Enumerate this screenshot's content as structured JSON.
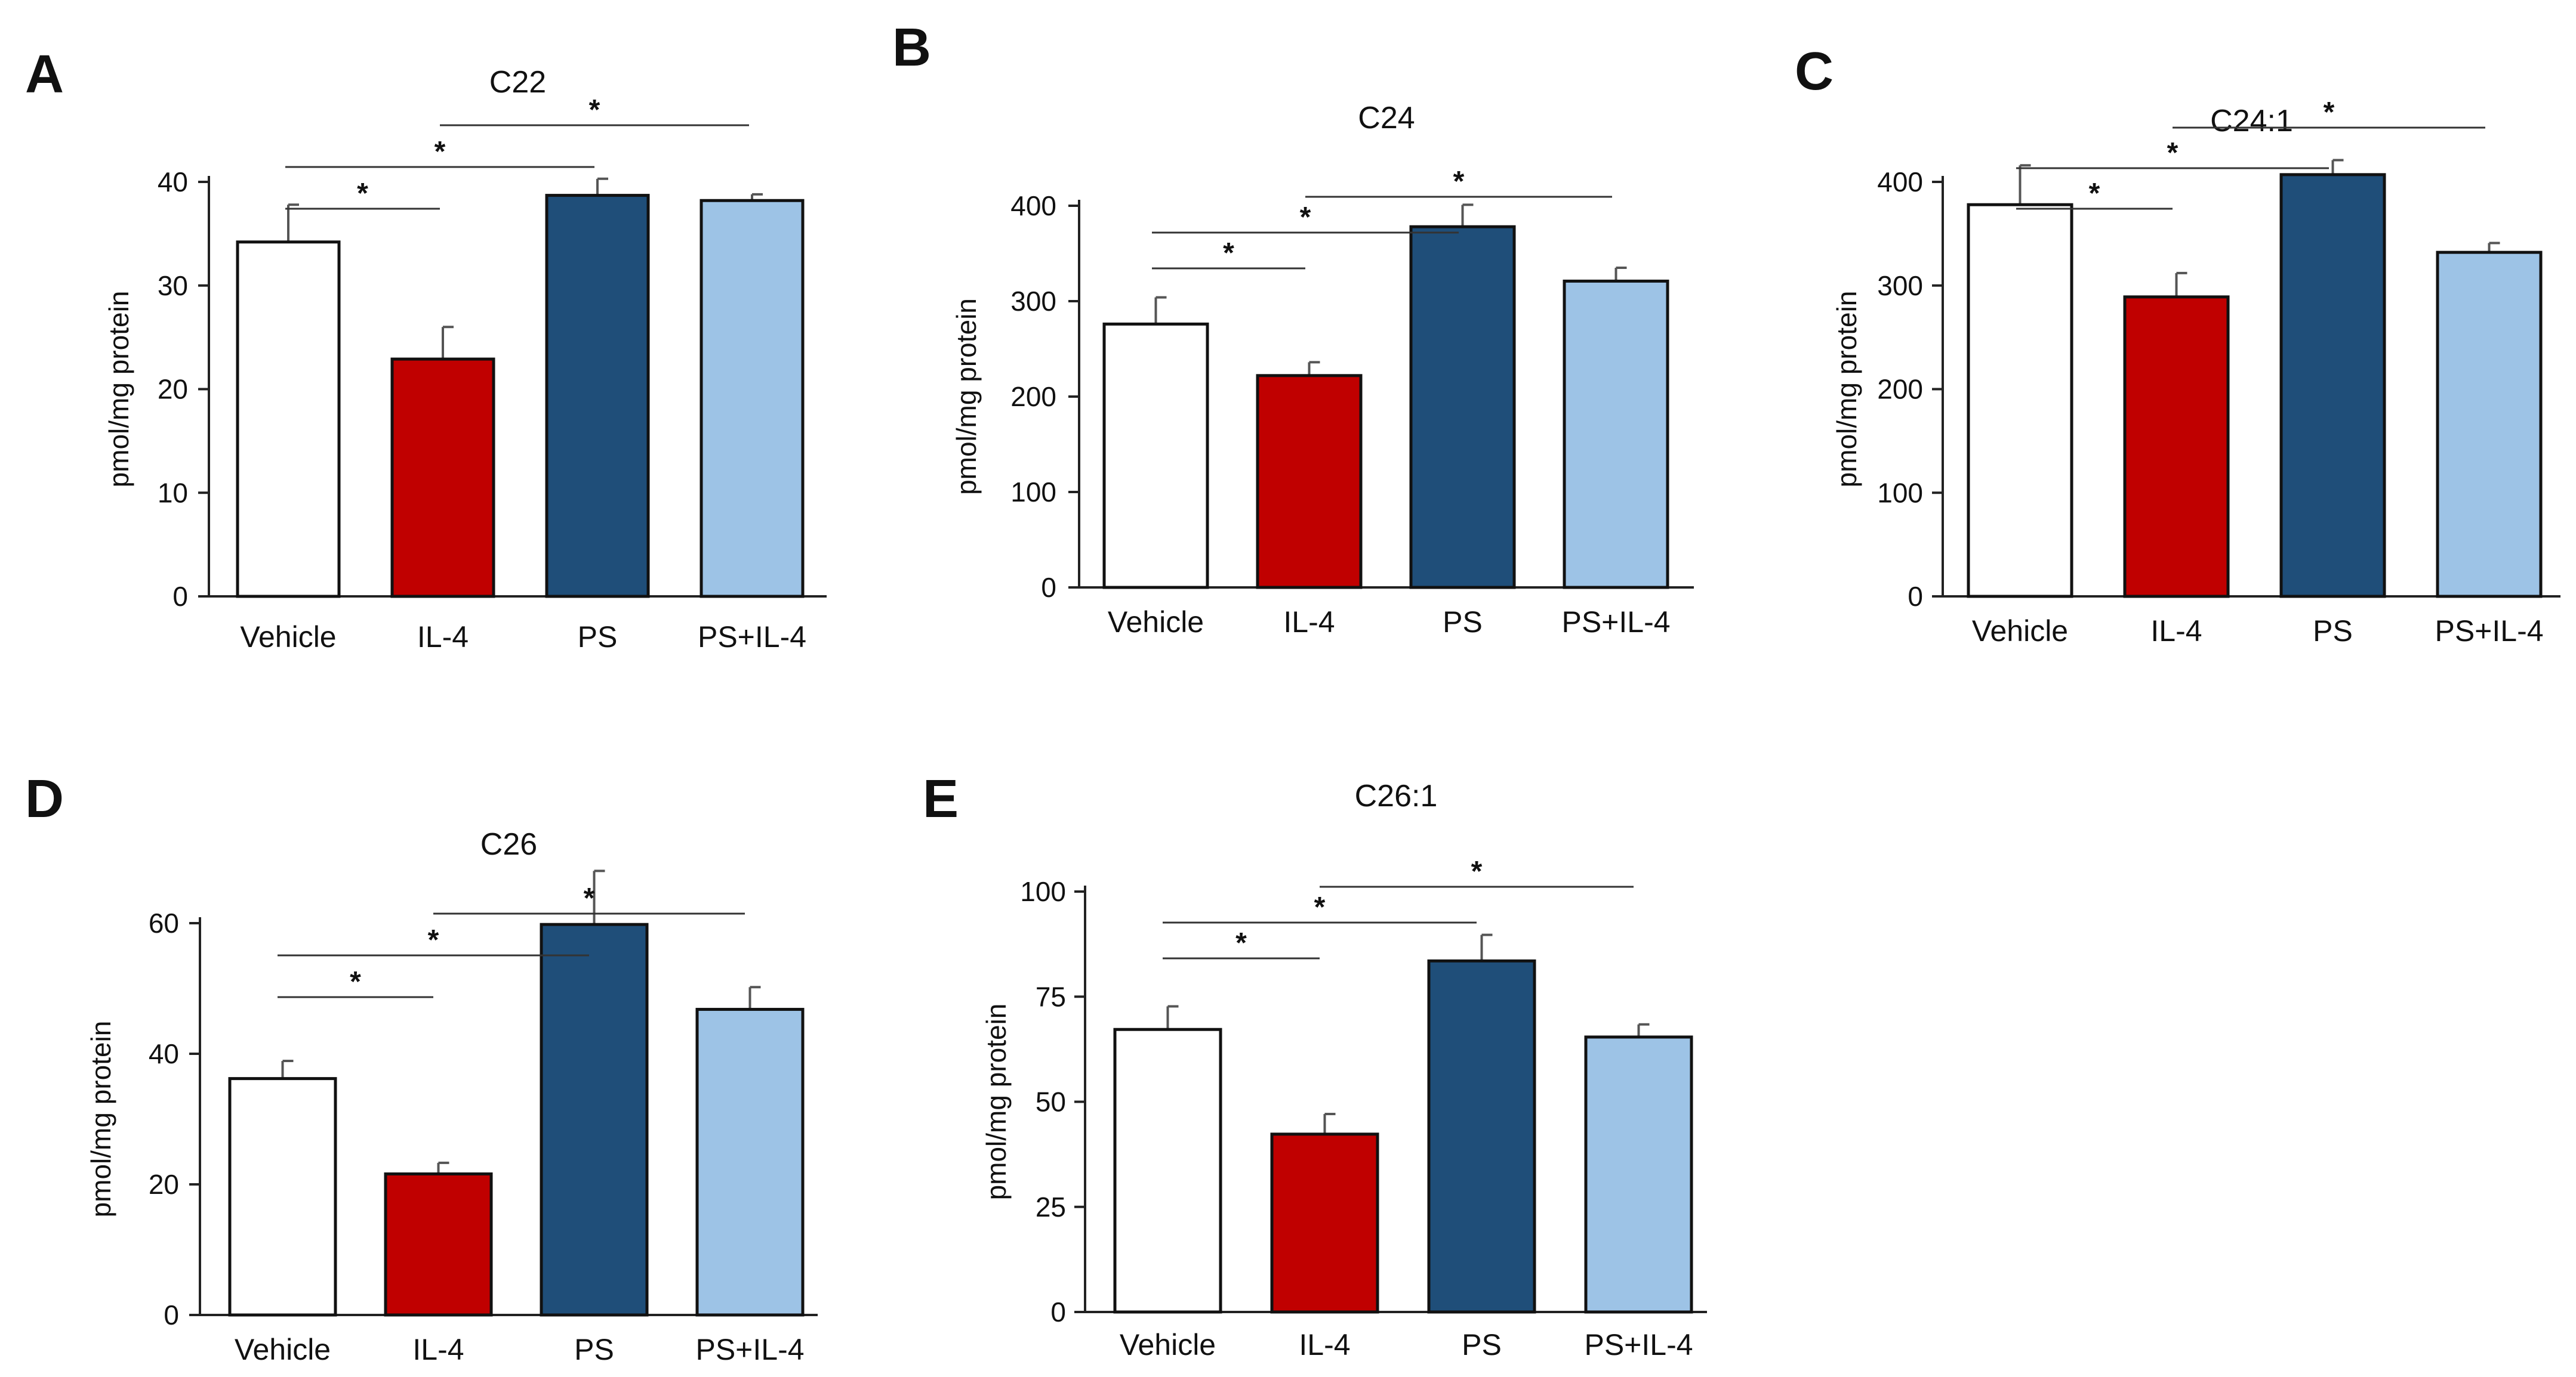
{
  "figure": {
    "colors": {
      "Vehicle": "#ffffff",
      "IL-4": "#c00000",
      "PS": "#1f4e79",
      "PS+IL-4": "#9dc3e6"
    }
  },
  "chart_data": [
    {
      "panel": "A",
      "type": "bar",
      "title": "C22",
      "ylabel": "pmol/mg protein",
      "xlabel": "",
      "ylim": [
        0,
        40
      ],
      "yticks": [
        0,
        10,
        20,
        30,
        40
      ],
      "categories": [
        "Vehicle",
        "IL-4",
        "PS",
        "PS+IL-4"
      ],
      "values": [
        34.2,
        22.9,
        38.7,
        38.2
      ],
      "errors": [
        3.6,
        3.1,
        1.6,
        0.6
      ],
      "significance": [
        {
          "from": 0,
          "to": 1,
          "label": "*"
        },
        {
          "from": 0,
          "to": 2,
          "label": "*"
        },
        {
          "from": 1,
          "to": 3,
          "label": "*"
        }
      ]
    },
    {
      "panel": "B",
      "type": "bar",
      "title": "C24",
      "ylabel": "pmol/mg protein",
      "xlabel": "",
      "ylim": [
        0,
        400
      ],
      "yticks": [
        0,
        100,
        200,
        300,
        400
      ],
      "categories": [
        "Vehicle",
        "IL-4",
        "PS",
        "PS+IL-4"
      ],
      "values": [
        276,
        222,
        378,
        321
      ],
      "errors": [
        28,
        14,
        23,
        14
      ],
      "significance": [
        {
          "from": 0,
          "to": 1,
          "label": "*"
        },
        {
          "from": 0,
          "to": 2,
          "label": "*"
        },
        {
          "from": 1,
          "to": 3,
          "label": "*"
        }
      ]
    },
    {
      "panel": "C",
      "type": "bar",
      "title": "C24:1",
      "ylabel": "pmol/mg protein",
      "xlabel": "",
      "ylim": [
        0,
        400
      ],
      "yticks": [
        0,
        100,
        200,
        300,
        400
      ],
      "categories": [
        "Vehicle",
        "IL-4",
        "PS",
        "PS+IL-4"
      ],
      "values": [
        378,
        289,
        407,
        332
      ],
      "errors": [
        38,
        23,
        14,
        9
      ],
      "significance": [
        {
          "from": 0,
          "to": 1,
          "label": "*"
        },
        {
          "from": 0,
          "to": 2,
          "label": "*"
        },
        {
          "from": 1,
          "to": 3,
          "label": "*"
        }
      ]
    },
    {
      "panel": "D",
      "type": "bar",
      "title": "C26",
      "ylabel": "pmol/mg protein",
      "xlabel": "",
      "ylim": [
        0,
        60
      ],
      "yticks": [
        0,
        20,
        40,
        60
      ],
      "categories": [
        "Vehicle",
        "IL-4",
        "PS",
        "PS+IL-4"
      ],
      "values": [
        36.2,
        21.6,
        59.8,
        46.8
      ],
      "errors": [
        2.7,
        1.7,
        8.2,
        3.4
      ],
      "significance": [
        {
          "from": 0,
          "to": 1,
          "label": "*"
        },
        {
          "from": 0,
          "to": 2,
          "label": "*"
        },
        {
          "from": 1,
          "to": 3,
          "label": "*"
        }
      ]
    },
    {
      "panel": "E",
      "type": "bar",
      "title": "C26:1",
      "ylabel": "pmol/mg protein",
      "xlabel": "",
      "ylim": [
        0,
        100
      ],
      "yticks": [
        0,
        25,
        50,
        75,
        100
      ],
      "categories": [
        "Vehicle",
        "IL-4",
        "PS",
        "PS+IL-4"
      ],
      "values": [
        67.2,
        42.3,
        83.5,
        65.4
      ],
      "errors": [
        5.5,
        4.8,
        6.2,
        3.0
      ],
      "significance": [
        {
          "from": 0,
          "to": 1,
          "label": "*"
        },
        {
          "from": 0,
          "to": 2,
          "label": "*"
        },
        {
          "from": 1,
          "to": 3,
          "label": "*"
        }
      ]
    }
  ]
}
